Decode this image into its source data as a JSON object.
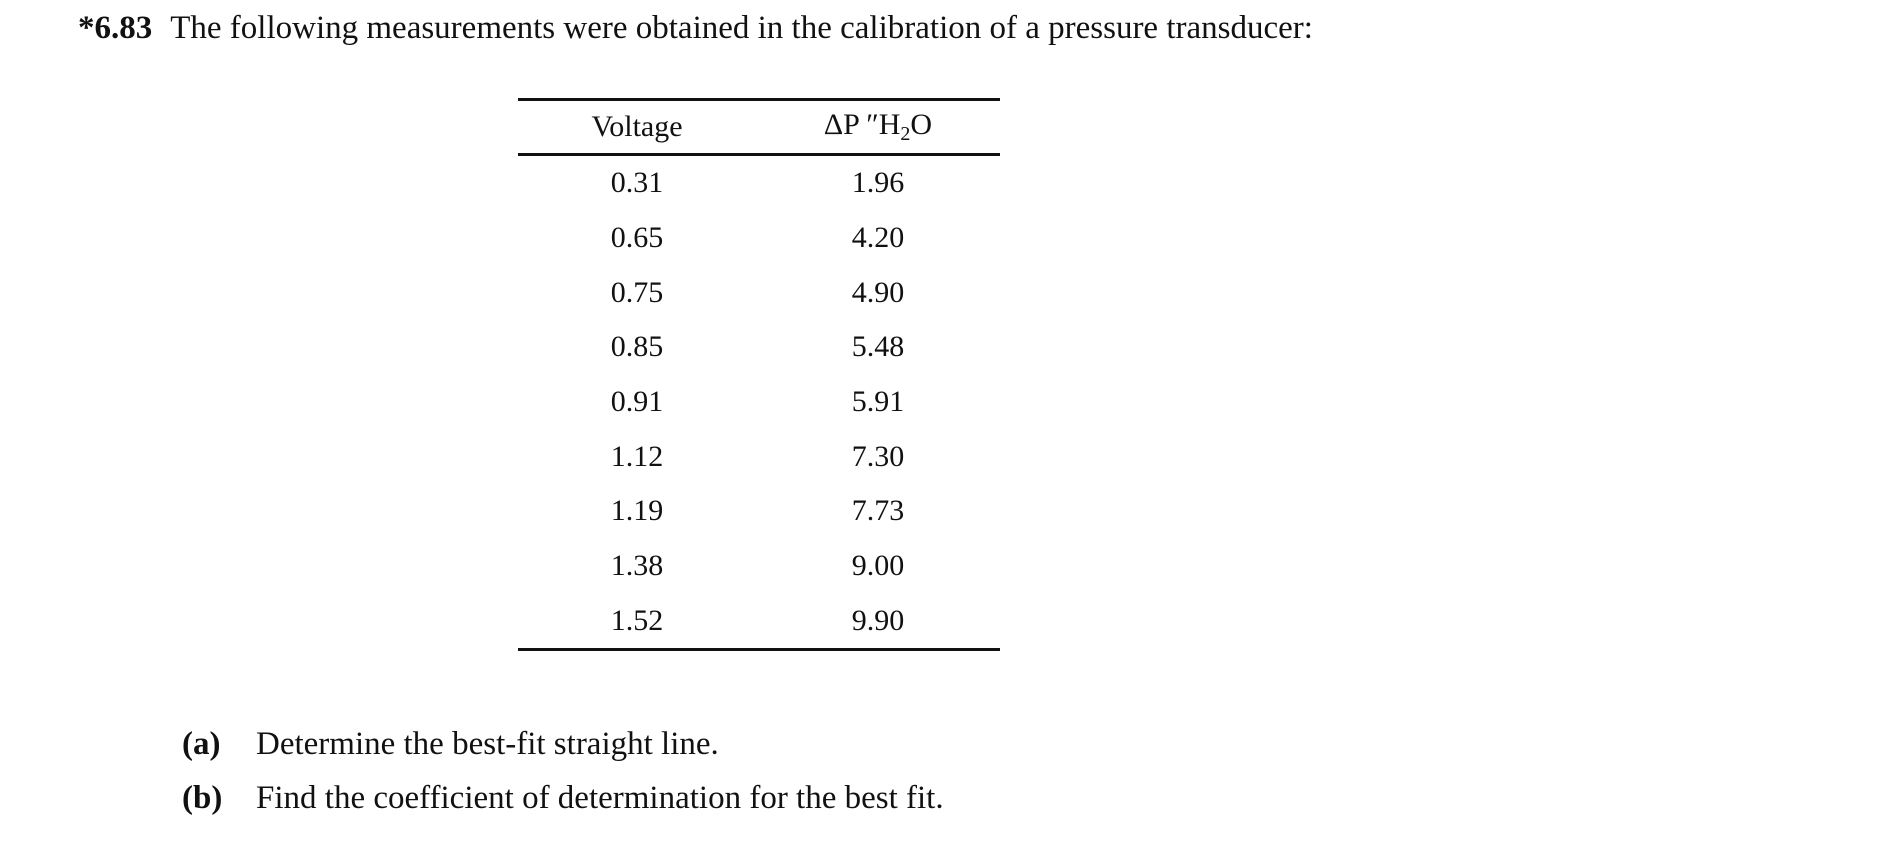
{
  "problem": {
    "number": "*6.83",
    "statement": "The following measurements were obtained in the calibration of a pressure transducer:"
  },
  "table": {
    "headers": {
      "voltage": "Voltage",
      "pressure_prefix": "ΔP ″H",
      "pressure_subscript": "2",
      "pressure_suffix": "O"
    },
    "rows": [
      {
        "voltage": "0.31",
        "pressure": "1.96"
      },
      {
        "voltage": "0.65",
        "pressure": "4.20"
      },
      {
        "voltage": "0.75",
        "pressure": "4.90"
      },
      {
        "voltage": "0.85",
        "pressure": "5.48"
      },
      {
        "voltage": "0.91",
        "pressure": "5.91"
      },
      {
        "voltage": "1.12",
        "pressure": "7.30"
      },
      {
        "voltage": "1.19",
        "pressure": "7.73"
      },
      {
        "voltage": "1.38",
        "pressure": "9.00"
      },
      {
        "voltage": "1.52",
        "pressure": "9.90"
      }
    ]
  },
  "parts": [
    {
      "label": "(a)",
      "text": "Determine the best-fit straight line."
    },
    {
      "label": "(b)",
      "text": "Find the coefficient of determination for the best fit."
    }
  ]
}
